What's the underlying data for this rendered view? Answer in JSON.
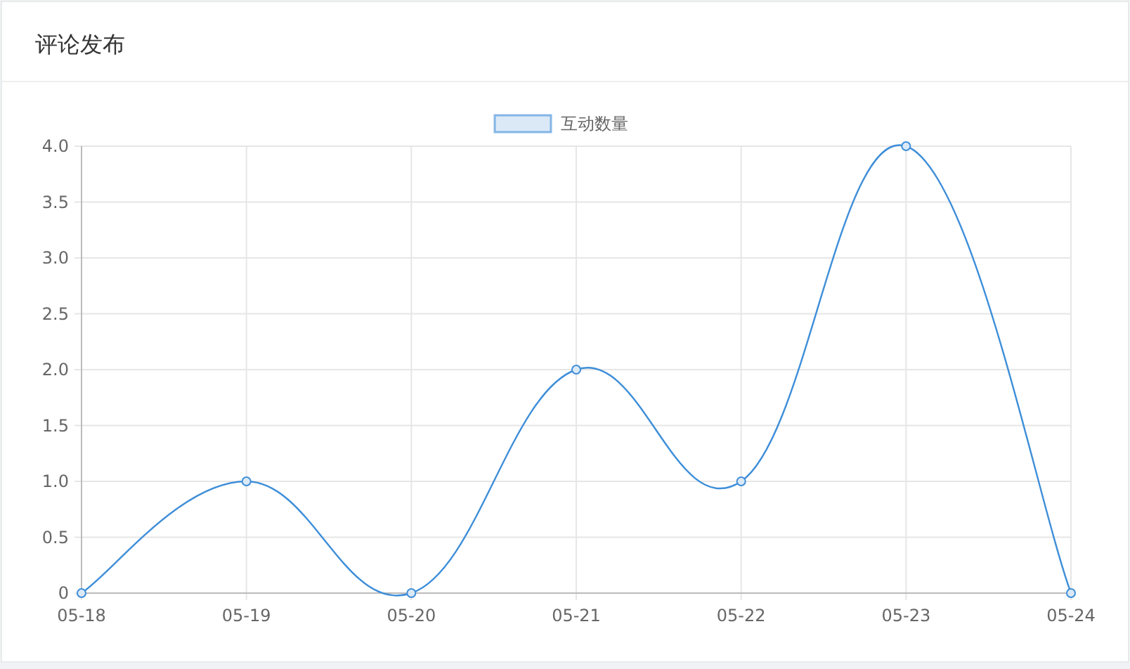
{
  "chart_data": {
    "type": "line",
    "title": "评论发布",
    "categories": [
      "05-18",
      "05-19",
      "05-20",
      "05-21",
      "05-22",
      "05-23",
      "05-24"
    ],
    "series": [
      {
        "name": "互动数量",
        "color": "#3e8ed8",
        "values": [
          0,
          1,
          0,
          2,
          1,
          4,
          0
        ]
      }
    ],
    "ylim": [
      0,
      4
    ],
    "yticks": [
      0,
      {
        "value": 0.5,
        "label": "0.5"
      },
      {
        "value": 1,
        "label": "1.0"
      },
      {
        "value": 1.5,
        "label": "1.5"
      },
      {
        "value": 2,
        "label": "2.0"
      },
      {
        "value": 2.5,
        "label": "2.5"
      },
      {
        "value": 3,
        "label": "3.0"
      },
      {
        "value": 3.5,
        "label": "3.5"
      },
      {
        "value": 4,
        "label": "4.0"
      }
    ],
    "grid": true,
    "legend": "top",
    "marker": "circle"
  }
}
